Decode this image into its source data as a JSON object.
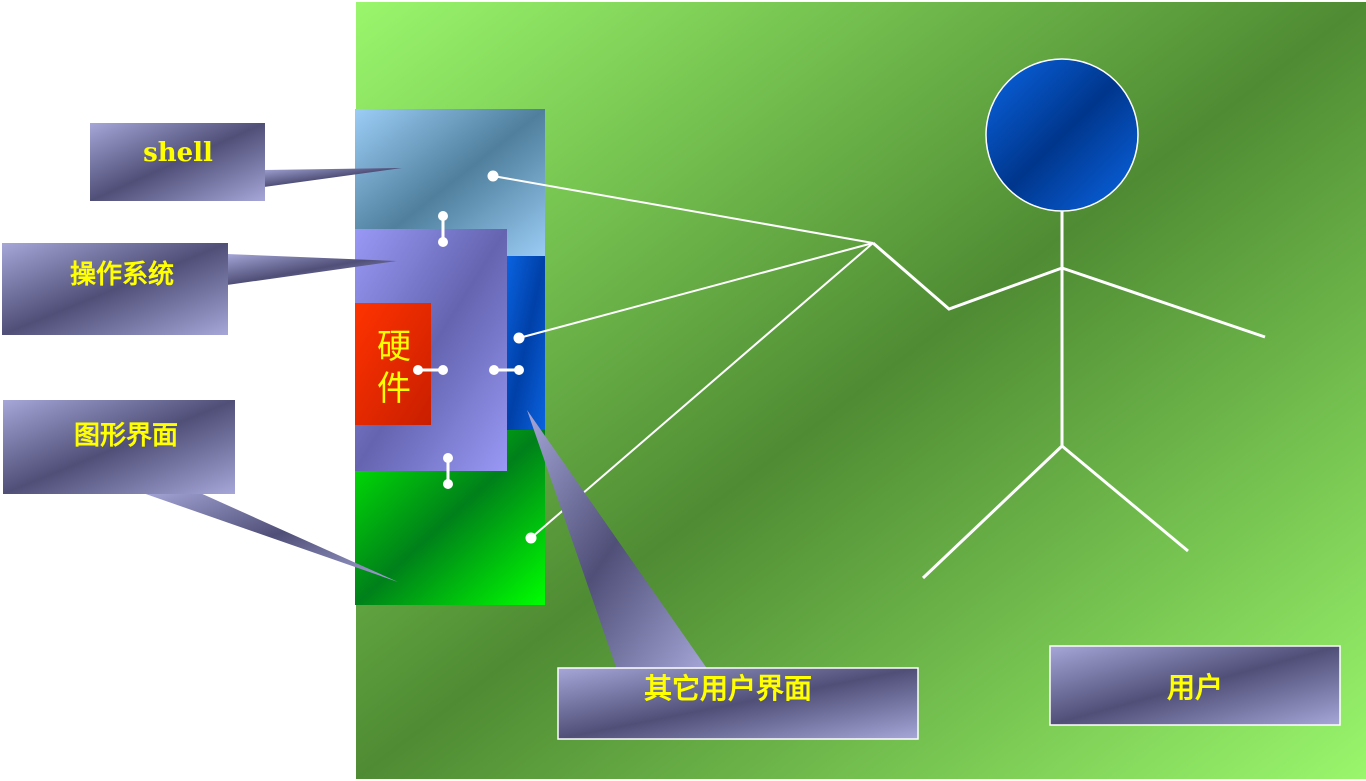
{
  "diagram": {
    "callouts": {
      "shell": "shell",
      "os": "操作系统",
      "gui": "图形界面",
      "other_ui": "其它用户界面",
      "user": "用户"
    },
    "hardware": [
      "硬",
      "件"
    ]
  },
  "colors": {
    "text_yellow": "#ffff00",
    "bg_green_light": "#96f56a",
    "bg_green_dark": "#4e8a32",
    "box_purple_light": "#9797cc",
    "box_purple_dark": "#565680",
    "user_head": "#0055cc",
    "hardware_red": "#ff3300",
    "gui_green": "#00ff00"
  }
}
